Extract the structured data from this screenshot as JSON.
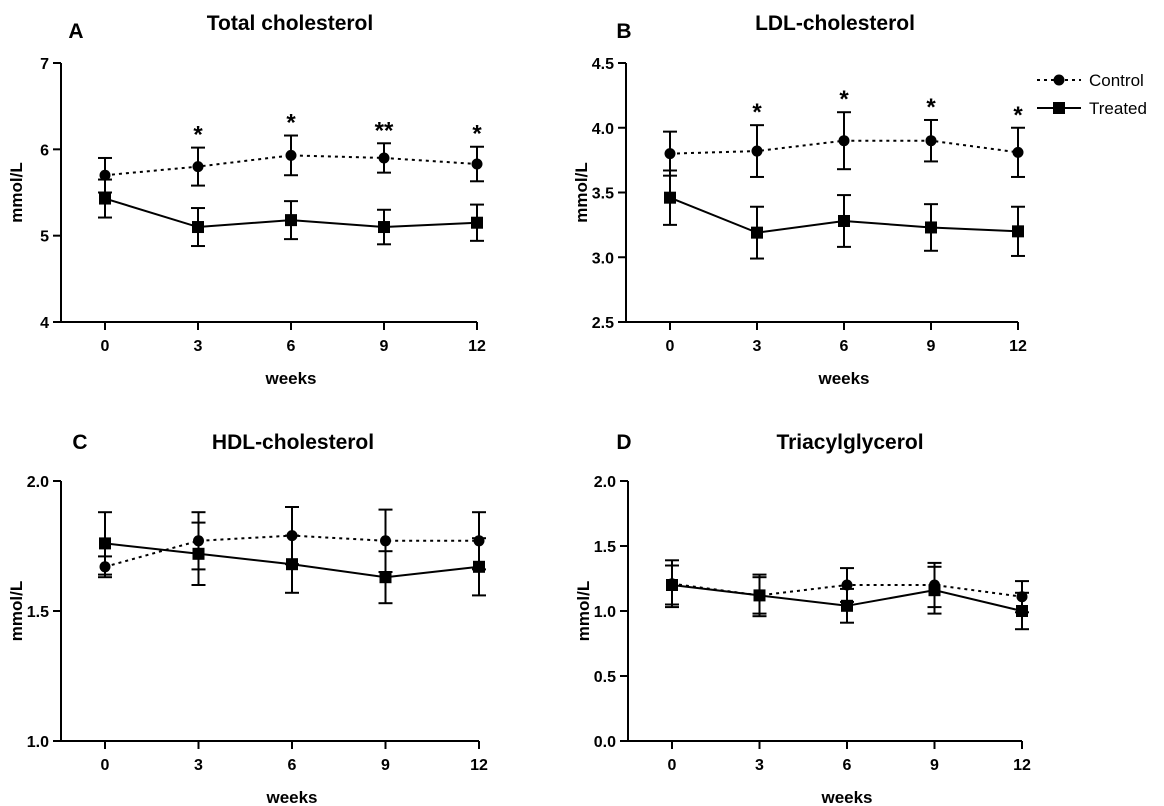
{
  "legend": {
    "position": "top-right",
    "entries": [
      {
        "name": "Control",
        "style": "dotted",
        "marker": "circle"
      },
      {
        "name": "Treated",
        "style": "solid",
        "marker": "square"
      }
    ]
  },
  "chart_data": [
    {
      "panel": "A",
      "title": "Total cholesterol",
      "type": "line",
      "xlabel": "weeks",
      "ylabel": "mmol/L",
      "x": [
        0,
        3,
        6,
        9,
        12
      ],
      "xticks": [
        "0",
        "3",
        "6",
        "9",
        "12"
      ],
      "ylim": [
        4,
        7
      ],
      "yticks": [
        "4",
        "5",
        "6",
        "7"
      ],
      "series": [
        {
          "name": "Control",
          "values": [
            5.7,
            5.8,
            5.93,
            5.9,
            5.83
          ],
          "errors": [
            0.2,
            0.22,
            0.23,
            0.17,
            0.2
          ]
        },
        {
          "name": "Treated",
          "values": [
            5.43,
            5.1,
            5.18,
            5.1,
            5.15
          ],
          "errors": [
            0.22,
            0.22,
            0.22,
            0.2,
            0.21
          ]
        }
      ],
      "significance": [
        {
          "x": 3,
          "label": "*"
        },
        {
          "x": 6,
          "label": "*"
        },
        {
          "x": 9,
          "label": "**"
        },
        {
          "x": 12,
          "label": "*"
        }
      ]
    },
    {
      "panel": "B",
      "title": "LDL-cholesterol",
      "type": "line",
      "xlabel": "weeks",
      "ylabel": "mmol/L",
      "x": [
        0,
        3,
        6,
        9,
        12
      ],
      "xticks": [
        "0",
        "3",
        "6",
        "9",
        "12"
      ],
      "ylim": [
        2.5,
        4.5
      ],
      "yticks": [
        "2.5",
        "3.0",
        "3.5",
        "4.0",
        "4.5"
      ],
      "series": [
        {
          "name": "Control",
          "values": [
            3.8,
            3.82,
            3.9,
            3.9,
            3.81
          ],
          "errors": [
            0.17,
            0.2,
            0.22,
            0.16,
            0.19
          ]
        },
        {
          "name": "Treated",
          "values": [
            3.46,
            3.19,
            3.28,
            3.23,
            3.2
          ],
          "errors": [
            0.21,
            0.2,
            0.2,
            0.18,
            0.19
          ]
        }
      ],
      "significance": [
        {
          "x": 3,
          "label": "*"
        },
        {
          "x": 6,
          "label": "*"
        },
        {
          "x": 9,
          "label": "*"
        },
        {
          "x": 12,
          "label": "*"
        }
      ]
    },
    {
      "panel": "C",
      "title": "HDL-cholesterol",
      "type": "line",
      "xlabel": "weeks",
      "ylabel": "mmol/L",
      "x": [
        0,
        3,
        6,
        9,
        12
      ],
      "xticks": [
        "0",
        "3",
        "6",
        "9",
        "12"
      ],
      "ylim": [
        1.0,
        2.0
      ],
      "yticks": [
        "1.0",
        "1.5",
        "2.0"
      ],
      "series": [
        {
          "name": "Control",
          "values": [
            1.67,
            1.77,
            1.79,
            1.77,
            1.77
          ],
          "errors": [
            0.04,
            0.11,
            0.11,
            0.12,
            0.11
          ]
        },
        {
          "name": "Treated",
          "values": [
            1.76,
            1.72,
            1.68,
            1.63,
            1.67
          ],
          "errors": [
            0.12,
            0.12,
            0.11,
            0.1,
            0.11
          ]
        }
      ],
      "significance": []
    },
    {
      "panel": "D",
      "title": "Triacylglycerol",
      "type": "line",
      "xlabel": "weeks",
      "ylabel": "mmol/L",
      "x": [
        0,
        3,
        6,
        9,
        12
      ],
      "xticks": [
        "0",
        "3",
        "6",
        "9",
        "12"
      ],
      "ylim": [
        0.0,
        2.0
      ],
      "yticks": [
        "0.0",
        "0.5",
        "1.0",
        "1.5",
        "2.0"
      ],
      "series": [
        {
          "name": "Control",
          "values": [
            1.21,
            1.12,
            1.2,
            1.2,
            1.11
          ],
          "errors": [
            0.18,
            0.14,
            0.13,
            0.17,
            0.12
          ]
        },
        {
          "name": "Treated",
          "values": [
            1.2,
            1.12,
            1.04,
            1.16,
            1.0
          ],
          "errors": [
            0.15,
            0.16,
            0.13,
            0.18,
            0.14
          ]
        }
      ],
      "significance": []
    }
  ]
}
